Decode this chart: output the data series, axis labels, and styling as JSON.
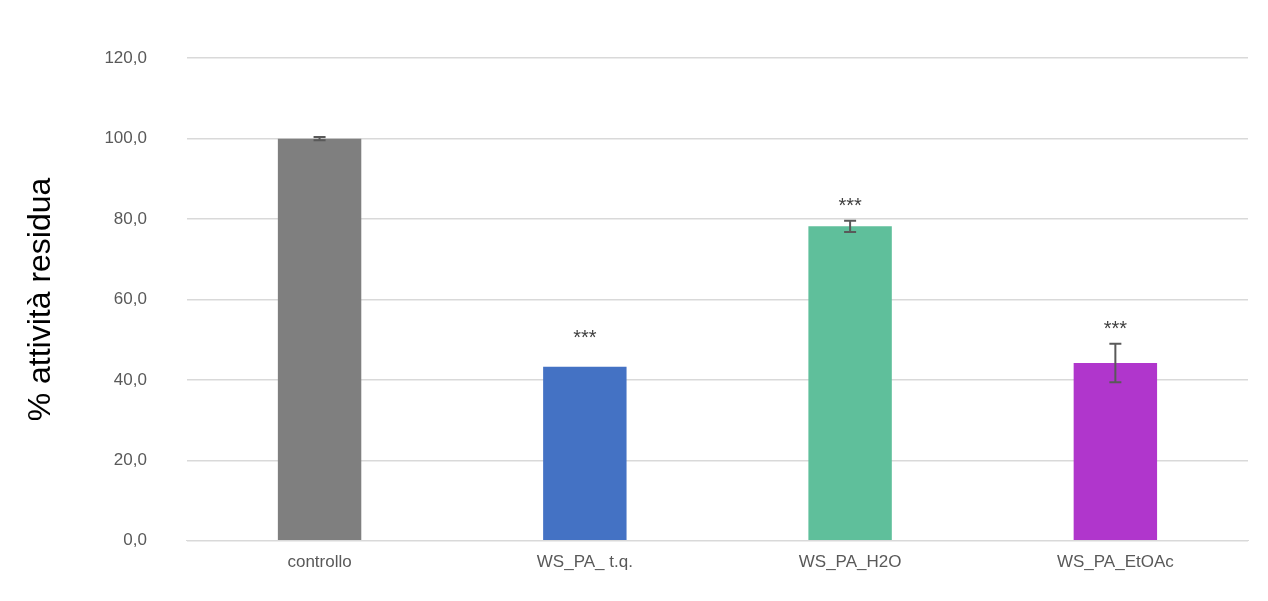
{
  "chart_data": {
    "type": "bar",
    "ylabel": "% attività residua",
    "categories": [
      "controllo",
      "WS_PA_ t.q.",
      "WS_PA_H2O",
      "WS_PA_EtOAc"
    ],
    "values": [
      100,
      43.3,
      78.2,
      44.2
    ],
    "colors": [
      "#7f7f7f",
      "#4472c4",
      "#5fbf9b",
      "#b036cc"
    ],
    "errors": [
      0.4,
      null,
      1.4,
      4.8
    ],
    "ylim": [
      0,
      120
    ],
    "yticks": [
      {
        "value": 0,
        "label": "0,0"
      },
      {
        "value": 20,
        "label": "20,0"
      },
      {
        "value": 40,
        "label": "40,0"
      },
      {
        "value": 60,
        "label": "60,0"
      },
      {
        "value": 80,
        "label": "80,0"
      },
      {
        "value": 100,
        "label": "100,0"
      },
      {
        "value": 120,
        "label": "120,0"
      }
    ],
    "grid": "y",
    "annotations": [
      {
        "text": "***",
        "x": "WS_PA_ t.q.",
        "y": 43.3
      },
      {
        "text": "***",
        "x": "WS_PA_H2O",
        "y": 78.2
      },
      {
        "text": "***",
        "x": "WS_PA_EtOAc",
        "y": 44.2
      }
    ]
  }
}
